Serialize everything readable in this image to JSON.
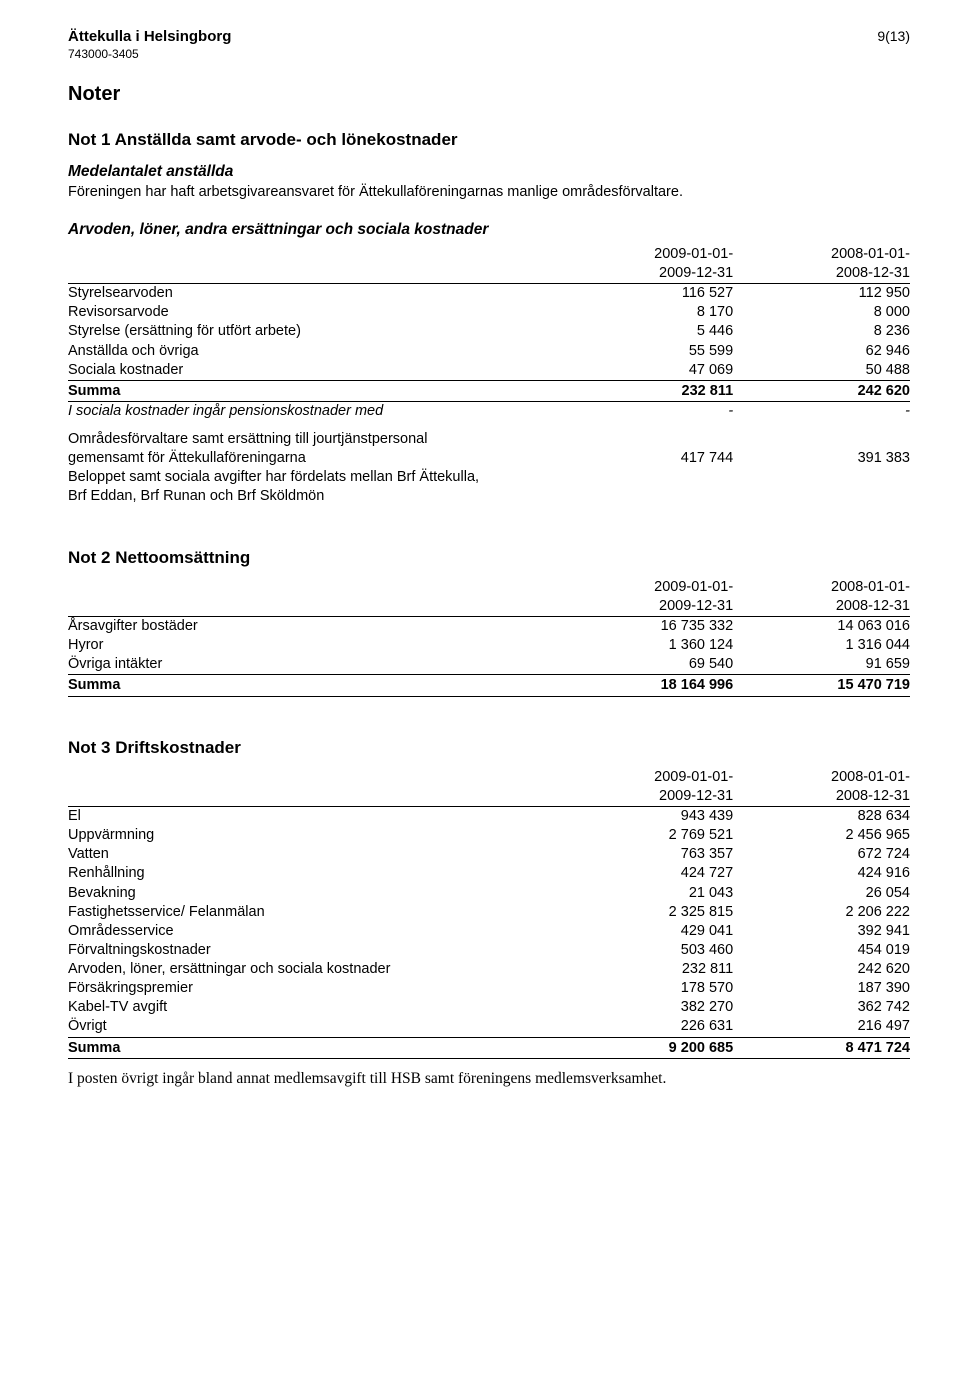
{
  "header": {
    "title": "Ättekulla i Helsingborg",
    "orgnr": "743000-3405",
    "page": "9(13)"
  },
  "section_title": "Noter",
  "note1": {
    "heading": "Not 1  Anställda samt arvode- och lönekostnader",
    "sub1": "Medelantalet anställda",
    "sub1_text": "Föreningen har haft arbetsgivareansvaret för Ättekullaföreningarnas manlige områdesförvaltare.",
    "sub2": "Arvoden, löner, andra ersättningar och sociala kostnader",
    "period_a_top": "2009-01-01-",
    "period_a_bot": "2009-12-31",
    "period_b_top": "2008-01-01-",
    "period_b_bot": "2008-12-31",
    "rows": [
      {
        "label": "Styrelsearvoden",
        "a": "116 527",
        "b": "112 950"
      },
      {
        "label": "Revisorsarvode",
        "a": "8 170",
        "b": "8 000"
      },
      {
        "label": "Styrelse (ersättning för utfört arbete)",
        "a": "5 446",
        "b": "8 236"
      },
      {
        "label": "Anställda och övriga",
        "a": "55 599",
        "b": "62 946"
      },
      {
        "label": "Sociala kostnader",
        "a": "47 069",
        "b": "50 488"
      }
    ],
    "sum": {
      "label": "Summa",
      "a": "232 811",
      "b": "242 620"
    },
    "pension_row": {
      "label": "I sociala kostnader ingår pensionskostnader med",
      "a": "-",
      "b": "-"
    },
    "extra1_line1": "Områdesförvaltare samt ersättning till jourtjänstpersonal",
    "extra1_line2": "gemensamt för Ättekullaföreningarna",
    "extra1_a": "417 744",
    "extra1_b": "391 383",
    "extra2_line1": "Beloppet samt sociala avgifter har fördelats mellan Brf Ättekulla,",
    "extra2_line2": "Brf Eddan, Brf Runan och Brf Sköldmön"
  },
  "note2": {
    "heading": "Not 2  Nettoomsättning",
    "period_a_top": "2009-01-01-",
    "period_a_bot": "2009-12-31",
    "period_b_top": "2008-01-01-",
    "period_b_bot": "2008-12-31",
    "rows": [
      {
        "label": "Årsavgifter bostäder",
        "a": "16 735 332",
        "b": "14 063 016"
      },
      {
        "label": "Hyror",
        "a": "1 360 124",
        "b": "1 316 044"
      },
      {
        "label": "Övriga intäkter",
        "a": "69 540",
        "b": "91 659"
      }
    ],
    "sum": {
      "label": "Summa",
      "a": "18 164 996",
      "b": "15 470 719"
    }
  },
  "note3": {
    "heading": "Not 3  Driftskostnader",
    "period_a_top": "2009-01-01-",
    "period_a_bot": "2009-12-31",
    "period_b_top": "2008-01-01-",
    "period_b_bot": "2008-12-31",
    "rows": [
      {
        "label": "El",
        "a": "943 439",
        "b": "828 634"
      },
      {
        "label": "Uppvärmning",
        "a": "2 769 521",
        "b": "2 456 965"
      },
      {
        "label": "Vatten",
        "a": "763 357",
        "b": "672 724"
      },
      {
        "label": "Renhållning",
        "a": "424 727",
        "b": "424 916"
      },
      {
        "label": "Bevakning",
        "a": "21 043",
        "b": "26 054"
      },
      {
        "label": "Fastighetsservice/ Felanmälan",
        "a": "2 325 815",
        "b": "2 206 222"
      },
      {
        "label": "Områdesservice",
        "a": "429 041",
        "b": "392 941"
      },
      {
        "label": "Förvaltningskostnader",
        "a": "503 460",
        "b": "454 019"
      },
      {
        "label": "Arvoden, löner, ersättningar och sociala kostnader",
        "a": "232 811",
        "b": "242 620"
      },
      {
        "label": "Försäkringspremier",
        "a": "178 570",
        "b": "187 390"
      },
      {
        "label": "Kabel-TV avgift",
        "a": "382 270",
        "b": "362 742"
      },
      {
        "label": "Övrigt",
        "a": "226 631",
        "b": "216 497"
      }
    ],
    "sum": {
      "label": "Summa",
      "a": "9 200 685",
      "b": "8 471 724"
    },
    "footnote": "I posten övrigt ingår bland annat medlemsavgift till HSB samt föreningens medlemsverksamhet."
  }
}
